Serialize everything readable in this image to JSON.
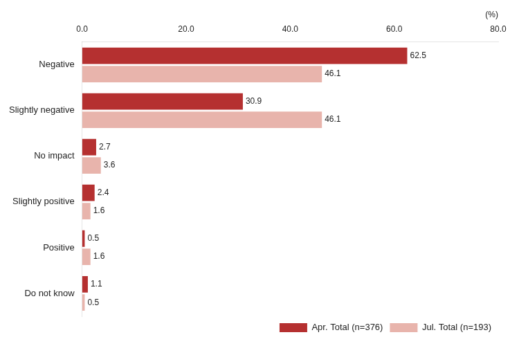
{
  "chart_data": {
    "type": "bar",
    "orientation": "horizontal",
    "categories": [
      "Negative",
      "Slightly negative",
      "No impact",
      "Slightly positive",
      "Positive",
      "Do not know"
    ],
    "series": [
      {
        "name": "Apr. Total (n=376)",
        "color": "#b53030",
        "values": [
          62.5,
          30.9,
          2.7,
          2.4,
          0.5,
          1.1
        ]
      },
      {
        "name": "Jul. Total (n=193)",
        "color": "#e8b4ac",
        "values": [
          46.1,
          46.1,
          3.6,
          1.6,
          1.6,
          0.5
        ]
      }
    ],
    "xlabel": "(%)",
    "xlim": [
      0,
      80
    ],
    "xticks": [
      {
        "value": 0,
        "label": "0.0"
      },
      {
        "value": 20,
        "label": "20.0"
      },
      {
        "value": 40,
        "label": "40.0"
      },
      {
        "value": 60,
        "label": "60.0"
      },
      {
        "value": 80,
        "label": "80.0"
      }
    ],
    "data_labels": true,
    "legend": "lower right",
    "grid": false
  }
}
